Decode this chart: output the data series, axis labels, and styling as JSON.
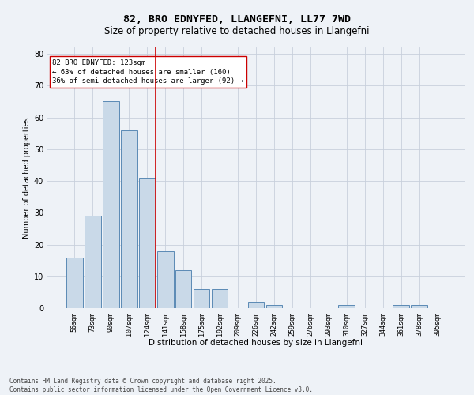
{
  "title": "82, BRO EDNYFED, LLANGEFNI, LL77 7WD",
  "subtitle": "Size of property relative to detached houses in Llangefni",
  "xlabel": "Distribution of detached houses by size in Llangefni",
  "ylabel": "Number of detached properties",
  "categories": [
    "56sqm",
    "73sqm",
    "90sqm",
    "107sqm",
    "124sqm",
    "141sqm",
    "158sqm",
    "175sqm",
    "192sqm",
    "209sqm",
    "226sqm",
    "242sqm",
    "259sqm",
    "276sqm",
    "293sqm",
    "310sqm",
    "327sqm",
    "344sqm",
    "361sqm",
    "378sqm",
    "395sqm"
  ],
  "values": [
    16,
    29,
    65,
    56,
    41,
    18,
    12,
    6,
    6,
    0,
    2,
    1,
    0,
    0,
    0,
    1,
    0,
    0,
    1,
    1,
    0
  ],
  "bar_color": "#c9d9e8",
  "bar_edge_color": "#5a8ab5",
  "red_line_index": 4,
  "red_line_color": "#cc0000",
  "annotation_text": "82 BRO EDNYFED: 123sqm\n← 63% of detached houses are smaller (160)\n36% of semi-detached houses are larger (92) →",
  "annotation_box_color": "#ffffff",
  "annotation_box_edge_color": "#cc0000",
  "annotation_fontsize": 6.5,
  "ylim": [
    0,
    82
  ],
  "yticks": [
    0,
    10,
    20,
    30,
    40,
    50,
    60,
    70,
    80
  ],
  "footer_text": "Contains HM Land Registry data © Crown copyright and database right 2025.\nContains public sector information licensed under the Open Government Licence v3.0.",
  "background_color": "#eef2f7",
  "grid_color": "#c8d0dc",
  "title_fontsize": 9.5,
  "subtitle_fontsize": 8.5,
  "xlabel_fontsize": 7.5,
  "ylabel_fontsize": 7,
  "tick_fontsize": 6,
  "footer_fontsize": 5.5
}
